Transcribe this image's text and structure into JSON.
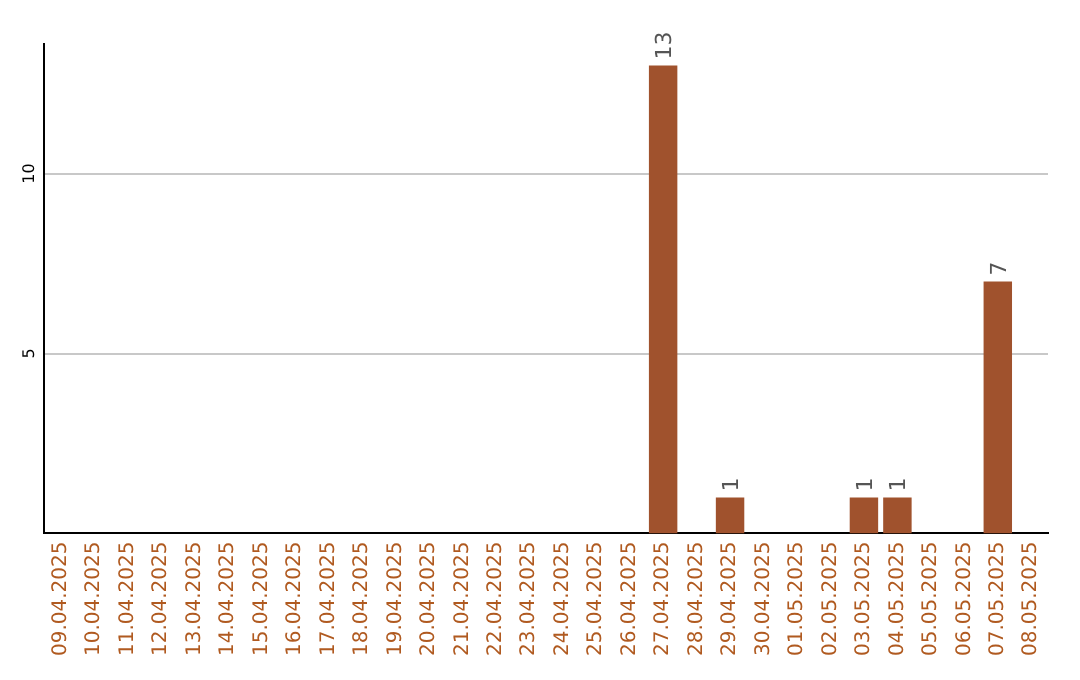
{
  "chart_data": {
    "type": "bar",
    "categories": [
      "09.04.2025",
      "10.04.2025",
      "11.04.2025",
      "12.04.2025",
      "13.04.2025",
      "14.04.2025",
      "15.04.2025",
      "16.04.2025",
      "17.04.2025",
      "18.04.2025",
      "19.04.2025",
      "20.04.2025",
      "21.04.2025",
      "22.04.2025",
      "23.04.2025",
      "24.04.2025",
      "25.04.2025",
      "26.04.2025",
      "27.04.2025",
      "28.04.2025",
      "29.04.2025",
      "30.04.2025",
      "01.05.2025",
      "02.05.2025",
      "03.05.2025",
      "04.05.2025",
      "05.05.2025",
      "06.05.2025",
      "07.05.2025",
      "08.05.2025"
    ],
    "values": [
      0,
      0,
      0,
      0,
      0,
      0,
      0,
      0,
      0,
      0,
      0,
      0,
      0,
      0,
      0,
      0,
      0,
      0,
      13,
      0,
      1,
      0,
      0,
      0,
      1,
      1,
      0,
      0,
      7,
      0
    ],
    "value_labels": [
      null,
      null,
      null,
      null,
      null,
      null,
      null,
      null,
      null,
      null,
      null,
      null,
      null,
      null,
      null,
      null,
      null,
      null,
      "13",
      null,
      "1",
      null,
      null,
      null,
      "1",
      "1",
      null,
      null,
      "7",
      null
    ],
    "color": "#a0522d",
    "ylim": [
      0,
      13.6
    ],
    "yticks": [
      5,
      10
    ],
    "grid": "y",
    "legend": false
  }
}
